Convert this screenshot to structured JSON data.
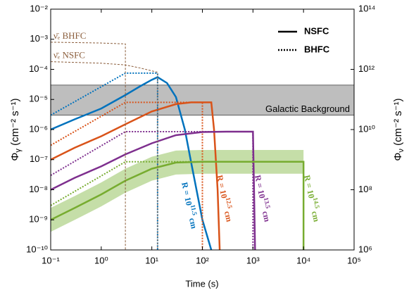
{
  "chart_data": {
    "type": "line",
    "xlabel": "Time (s)",
    "ylabel": {
      "symbol": "Φ",
      "sub": "γ",
      "unit": " (cm⁻² s⁻¹)"
    },
    "y2label": {
      "symbol": "Φ",
      "sub": "ν",
      "unit": " (cm⁻² s⁻¹)"
    },
    "log_x": true,
    "log_y": true,
    "xlim": [
      0.1,
      100000
    ],
    "xticks": [
      {
        "value": 0.1,
        "label": "10⁻¹"
      },
      {
        "value": 1,
        "label": "10⁰"
      },
      {
        "value": 10,
        "label": "10¹"
      },
      {
        "value": 100,
        "label": "10²"
      },
      {
        "value": 1000,
        "label": "10³"
      },
      {
        "value": 10000,
        "label": "10⁴"
      },
      {
        "value": 100000,
        "label": "10⁵"
      }
    ],
    "ylim": [
      1e-10,
      0.01
    ],
    "yticks": [
      {
        "value": 1e-10,
        "label": "10⁻¹⁰"
      },
      {
        "value": 1e-09,
        "label": "10⁻⁹"
      },
      {
        "value": 1e-08,
        "label": "10⁻⁸"
      },
      {
        "value": 1e-07,
        "label": "10⁻⁷"
      },
      {
        "value": 1e-06,
        "label": "10⁻⁶"
      },
      {
        "value": 1e-05,
        "label": "10⁻⁵"
      },
      {
        "value": 0.0001,
        "label": "10⁻⁴"
      },
      {
        "value": 0.001,
        "label": "10⁻³"
      },
      {
        "value": 0.01,
        "label": "10⁻²"
      }
    ],
    "y2lim": [
      1000000,
      100000000000000
    ],
    "y2ticks": [
      {
        "value": 1000000,
        "label": "10⁶"
      },
      {
        "value": 100000000,
        "label": "10⁸"
      },
      {
        "value": 10000000000,
        "label": "10¹⁰"
      },
      {
        "value": 1000000000000,
        "label": "10¹²"
      },
      {
        "value": 100000000000000,
        "label": "10¹⁴"
      }
    ],
    "legend": [
      {
        "label": "NSFC",
        "style": "solid"
      },
      {
        "label": "BHFC",
        "style": "dotted"
      }
    ],
    "legend_position": "upper right",
    "background": {
      "label": "Galactic Background",
      "range": [
        3e-06,
        3e-05
      ],
      "color": "#bebebe"
    },
    "band": {
      "color": "#c5dea8",
      "x": [
        0.1,
        0.3,
        1,
        3,
        10,
        30,
        100,
        10000
      ],
      "lower": [
        4e-10,
        1e-09,
        2.8e-09,
        8e-09,
        2e-08,
        3.2e-08,
        3.4e-08,
        3.4e-08
      ],
      "upper": [
        2.5e-09,
        6.2e-09,
        1.75e-08,
        5e-08,
        1.25e-07,
        2e-07,
        2.1e-07,
        2.1e-07
      ]
    },
    "series": [
      {
        "color": "#0072BD",
        "style": "solid",
        "label": {
          "text": "R = 10",
          "sup": "11.5",
          "unit": " cm"
        },
        "x": [
          0.1,
          0.3,
          1,
          3,
          6,
          10,
          13,
          20,
          30,
          45,
          60,
          100,
          150
        ],
        "values": [
          1e-06,
          2.2e-06,
          5e-06,
          1.4e-05,
          2.8e-05,
          4.5e-05,
          5.5e-05,
          3.5e-05,
          1.2e-05,
          1e-06,
          8e-08,
          1e-09,
          1e-10
        ]
      },
      {
        "color": "#0072BD",
        "style": "dotted",
        "x": [
          0.1,
          3,
          13,
          13
        ],
        "values": [
          3e-06,
          7.5e-05,
          7.5e-05,
          1e-10
        ]
      },
      {
        "color": "#D95319",
        "style": "solid",
        "label": {
          "text": "R = 10",
          "sup": "12.5",
          "unit": " cm"
        },
        "x": [
          0.1,
          0.3,
          1,
          3,
          10,
          30,
          60,
          150,
          170,
          200,
          220
        ],
        "values": [
          1e-07,
          2.5e-07,
          6e-07,
          1.5e-06,
          4e-06,
          7e-06,
          8e-06,
          8e-06,
          1e-06,
          1e-08,
          1e-10
        ]
      },
      {
        "color": "#D95319",
        "style": "dotted",
        "x": [
          0.1,
          3,
          100,
          100
        ],
        "values": [
          3e-07,
          8e-06,
          8e-06,
          1e-10
        ]
      },
      {
        "color": "#7E2F8E",
        "style": "solid",
        "label": {
          "text": "R = 10",
          "sup": "13.5",
          "unit": " cm"
        },
        "x": [
          0.1,
          0.3,
          1,
          3,
          10,
          30,
          100,
          300,
          1000,
          1050,
          1100
        ],
        "values": [
          1e-08,
          2.5e-08,
          6e-08,
          1.5e-07,
          3.5e-07,
          6.5e-07,
          8.3e-07,
          8.5e-07,
          8.5e-07,
          1e-08,
          1e-10
        ]
      },
      {
        "color": "#7E2F8E",
        "style": "dotted",
        "x": [
          0.1,
          3,
          1000,
          1000
        ],
        "values": [
          3e-08,
          8.5e-07,
          8.5e-07,
          1e-10
        ]
      },
      {
        "color": "#77AC30",
        "style": "solid",
        "label": {
          "text": "R = 10",
          "sup": "14.5",
          "unit": " cm"
        },
        "x": [
          0.1,
          0.3,
          1,
          3,
          10,
          30,
          100,
          10000,
          10000
        ],
        "values": [
          1e-09,
          2.5e-09,
          7e-09,
          2e-08,
          5e-08,
          8e-08,
          8.5e-08,
          8.5e-08,
          1e-10
        ]
      },
      {
        "color": "#77AC30",
        "style": "dotted",
        "x": [
          0.1,
          3,
          10000
        ],
        "values": [
          3e-09,
          8.5e-08,
          8.5e-08
        ]
      },
      {
        "name": "ν̄ₑ BHFC",
        "color": "#8B5E3C",
        "style": "dashed",
        "axis": "y2",
        "x": [
          0.1,
          1,
          3,
          3
        ],
        "values": [
          8000000000000,
          7500000000000,
          7000000000000,
          1000000
        ]
      },
      {
        "name": "ν̄ₑ NSFC",
        "color": "#8B5E3C",
        "style": "dashed",
        "axis": "y2",
        "x": [
          0.1,
          1,
          3,
          6,
          13,
          13
        ],
        "values": [
          1800000000000,
          1600000000000,
          1400000000000,
          1100000000000,
          800000000000,
          1000000
        ]
      }
    ]
  }
}
